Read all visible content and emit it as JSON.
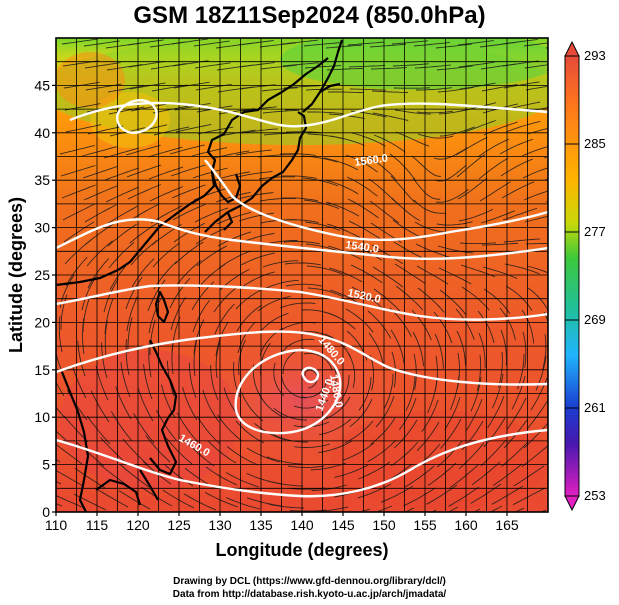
{
  "title": "GSM 18Z11Sep2024 (850.0hPa)",
  "credits": {
    "line1": "Drawing by DCL (https://www.gfd-dennou.org/library/dcl/)",
    "line2": "Data from http://database.rish.kyoto-u.ac.jp/arch/jmadata/"
  },
  "axes": {
    "xlabel": "Longitude (degrees)",
    "ylabel": "Latitude  (degrees)",
    "x_ticks": [
      110,
      115,
      120,
      125,
      130,
      135,
      140,
      145,
      150,
      155,
      160,
      165
    ],
    "y_ticks": [
      0,
      5,
      10,
      15,
      20,
      25,
      30,
      35,
      40,
      45
    ],
    "xlim": [
      110,
      170
    ],
    "ylim": [
      0,
      50
    ]
  },
  "colorbar": {
    "labels": [
      "293",
      "285",
      "277",
      "269",
      "261",
      "253"
    ],
    "min": 253,
    "max": 293,
    "colors": {
      "low": "#e020c0",
      "blue": "#1a28c8",
      "cyan": "#20c0ff",
      "green": "#32c832",
      "orange": "#ff9a00",
      "high": "#e84a3a"
    }
  },
  "contours": {
    "labels": [
      "1560.0",
      "1540.0",
      "1520.0",
      "1480.0",
      "1480.0",
      "1440.0",
      "1460.0"
    ]
  },
  "colors": {
    "land": "#000000",
    "contour": "#ffffff",
    "streamline": "#1a1a1a"
  }
}
